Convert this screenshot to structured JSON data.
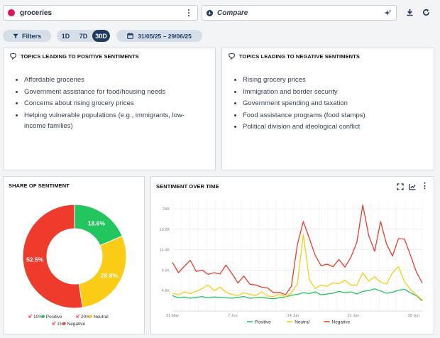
{
  "search": {
    "query": "groceries",
    "dot_color": "#e0115f"
  },
  "compare": {
    "label": "Compare"
  },
  "filters": {
    "label": "Filters"
  },
  "ranges": [
    {
      "label": "1D",
      "active": false
    },
    {
      "label": "7D",
      "active": false
    },
    {
      "label": "30D",
      "active": true
    }
  ],
  "date_range": "31/05/25 – 29/06/25",
  "positive_topics": {
    "title": "TOPICS LEADING TO POSITIVE SENTIMENTS",
    "items": [
      "Affordable groceries",
      "Government assistance for food/housing needs",
      "Concerns about rising grocery prices",
      "Helping vulnerable populations (e.g., immigrants, low-income families)"
    ]
  },
  "negative_topics": {
    "title": "TOPICS LEADING TO NEGATIVE SENTIMENTS",
    "items": [
      "Rising grocery prices",
      "Immigration and border security",
      "Government spending and taxation",
      "Food assistance programs (food stamps)",
      "Political division and ideological conflict"
    ]
  },
  "share": {
    "title": "SHARE OF SENTIMENT",
    "legend": [
      {
        "change": "10%",
        "name": "Positive",
        "color": "#22c55e",
        "trend": "down"
      },
      {
        "change": "20%",
        "name": "Neutral",
        "color": "#facc15",
        "trend": "down"
      },
      {
        "change": "1%",
        "name": "Negative",
        "color": "#ef4444",
        "trend": "down"
      }
    ],
    "trend_color": "#ef4444"
  },
  "over_time": {
    "title": "SENTIMENT OVER TIME"
  },
  "chart_data": [
    {
      "type": "pie",
      "title": "SHARE OF SENTIMENT",
      "labels": [
        "Positive",
        "Neutral",
        "Negative"
      ],
      "values": [
        18.6,
        28.9,
        52.5
      ],
      "value_labels": [
        "18.6%",
        "28.9%",
        "52.5%"
      ],
      "colors": [
        "#22c55e",
        "#facc15",
        "#ef3b2c"
      ],
      "donut": true
    },
    {
      "type": "line",
      "title": "SENTIMENT OVER TIME",
      "x_ticks": [
        "31 May",
        "7 Jun",
        "14 Jun",
        "21 Jun",
        "28 Jun"
      ],
      "y_ticks": [
        "4.8K",
        "9.6K",
        "14.4K",
        "19.2K",
        "24K"
      ],
      "ylim": [
        0,
        26000
      ],
      "grid": true,
      "legend_position": "bottom",
      "series": [
        {
          "name": "Positive",
          "color": "#22c55e",
          "values": [
            3600,
            3100,
            3300,
            3000,
            3200,
            3400,
            3100,
            3300,
            3200,
            3100,
            3000,
            3200,
            3400,
            3000,
            3100,
            3200,
            3000,
            2900,
            3100,
            3300,
            3700,
            3900,
            4300,
            4100,
            4500,
            3800,
            4000,
            4200,
            4600,
            4300,
            4500,
            4000,
            4600,
            4800,
            5200,
            4700,
            4200,
            4400,
            4900,
            5100,
            4300,
            3600,
            2400
          ]
        },
        {
          "name": "Neutral",
          "color": "#facc15",
          "values": [
            4200,
            3800,
            4500,
            4100,
            4600,
            5300,
            6100,
            4800,
            5600,
            4400,
            3900,
            3600,
            4300,
            3900,
            3600,
            4500,
            3500,
            3400,
            3900,
            3300,
            4300,
            6300,
            18000,
            7400,
            5300,
            6100,
            5800,
            6600,
            6400,
            7200,
            6100,
            6000,
            9000,
            7000,
            8000,
            6800,
            6300,
            9000,
            10400,
            6900,
            5100,
            3800,
            2600
          ]
        },
        {
          "name": "Negative",
          "color": "#ef3b2c",
          "values": [
            11400,
            9000,
            10500,
            11900,
            9300,
            9600,
            8600,
            9000,
            8700,
            10800,
            8800,
            6600,
            8200,
            6300,
            6100,
            5600,
            5400,
            4300,
            4400,
            3800,
            5800,
            15600,
            21000,
            17100,
            13100,
            10600,
            11000,
            10400,
            12100,
            10300,
            12600,
            16100,
            24900,
            17700,
            14000,
            21000,
            15700,
            12900,
            17000,
            16900,
            13200,
            9200,
            6600
          ]
        }
      ]
    }
  ]
}
